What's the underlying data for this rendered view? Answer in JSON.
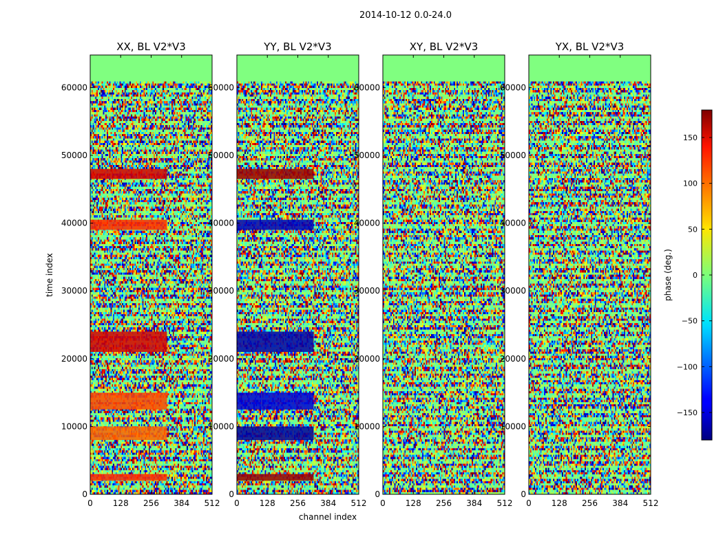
{
  "figure": {
    "suptitle": "2014-10-12 0.0-24.0",
    "xlabel": "channel index",
    "ylabel": "time index",
    "colorbar_label": "phase (deg.)"
  },
  "chart_data": {
    "type": "heatmap",
    "x_range": [
      0,
      512
    ],
    "y_range": [
      0,
      64800
    ],
    "x_ticks": [
      0,
      128,
      256,
      384,
      512
    ],
    "y_ticks": [
      0,
      10000,
      20000,
      30000,
      40000,
      50000,
      60000
    ],
    "color_range": [
      -180,
      180
    ],
    "colorbar_ticks": [
      -150,
      -100,
      -50,
      0,
      50,
      100,
      150
    ],
    "colormap": "jet",
    "panels": [
      {
        "title": "XX, BL V2*V3",
        "pol": "XX"
      },
      {
        "title": "YY, BL V2*V3",
        "pol": "YY"
      },
      {
        "title": "XY, BL V2*V3",
        "pol": "XY"
      },
      {
        "title": "YX, BL V2*V3",
        "pol": "YX"
      }
    ],
    "flagged_time_range": [
      61000,
      64800
    ],
    "flagged_value": 0,
    "coherent_bands": [
      {
        "pol": "XX",
        "time_range": [
          46500,
          48000
        ],
        "phase": 150
      },
      {
        "pol": "YY",
        "time_range": [
          46500,
          48000
        ],
        "phase": 170
      },
      {
        "pol": "XX",
        "time_range": [
          39000,
          40500
        ],
        "phase": 120
      },
      {
        "pol": "YY",
        "time_range": [
          39000,
          40500
        ],
        "phase": -160
      },
      {
        "pol": "XX",
        "time_range": [
          21000,
          24000
        ],
        "phase": 150
      },
      {
        "pol": "YY",
        "time_range": [
          21000,
          24000
        ],
        "phase": -165
      },
      {
        "pol": "XX",
        "time_range": [
          12500,
          15000
        ],
        "phase": 110
      },
      {
        "pol": "YY",
        "time_range": [
          12500,
          15000
        ],
        "phase": -150
      },
      {
        "pol": "XX",
        "time_range": [
          8000,
          10000
        ],
        "phase": 100
      },
      {
        "pol": "YY",
        "time_range": [
          8000,
          10000
        ],
        "phase": -170
      },
      {
        "pol": "XX",
        "time_range": [
          2000,
          3000
        ],
        "phase": 120
      },
      {
        "pol": "YY",
        "time_range": [
          2000,
          3000
        ],
        "phase": 170
      }
    ]
  },
  "colors": {
    "background": "#ffffff",
    "axis": "#000000",
    "flagged": "#7cff79"
  }
}
